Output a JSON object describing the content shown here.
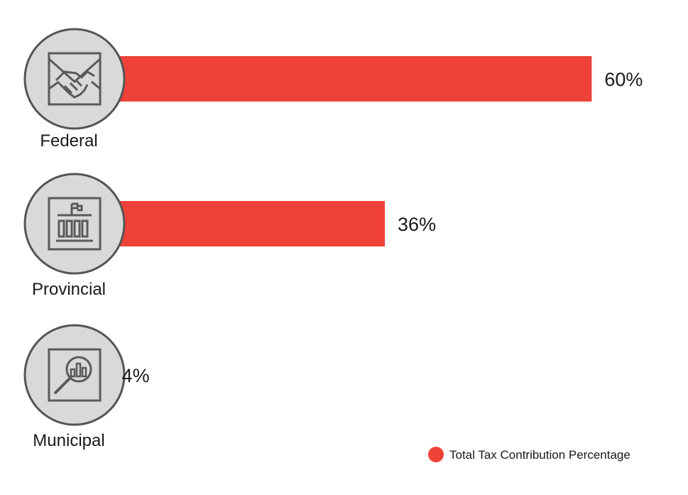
{
  "chart_data": {
    "type": "bar",
    "orientation": "horizontal",
    "categories": [
      "Federal",
      "Provincial",
      "Municipal"
    ],
    "series": [
      {
        "name": "Total Tax Contribution Percentage",
        "values": [
          60,
          36,
          4
        ]
      }
    ],
    "value_labels": [
      "60%",
      "36%",
      "4%"
    ],
    "icons": [
      "handshake-icon",
      "government-building-icon",
      "magnifier-chart-icon"
    ],
    "xlim": [
      0,
      100
    ],
    "grid": false,
    "legend_position": "bottom-right",
    "bar_color": "#ee4238",
    "icon_circle_fill": "#d9d9d9",
    "icon_stroke_color": "#5a5a5a"
  }
}
